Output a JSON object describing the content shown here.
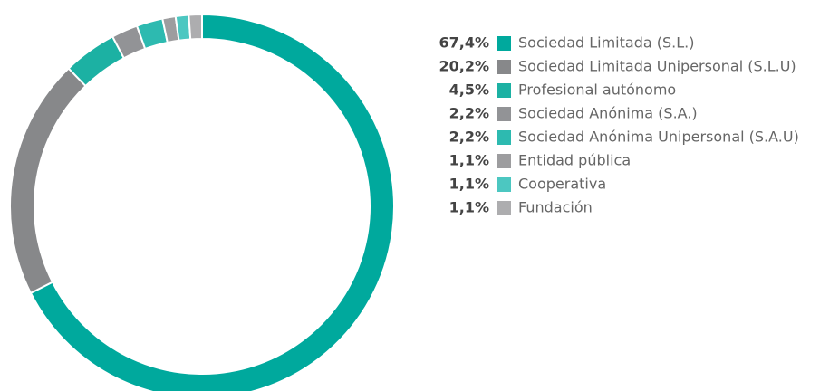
{
  "chart_data": {
    "type": "donut",
    "categories": [
      "Sociedad Limitada (S.L.)",
      "Sociedad Limitada Unipersonal (S.L.U)",
      "Profesional autónomo",
      "Sociedad Anónima (S.A.)",
      "Sociedad Anónima Unipersonal (S.A.U)",
      "Entidad pública",
      "Cooperativa",
      "Fundación"
    ],
    "values": [
      67.4,
      20.2,
      4.5,
      2.2,
      2.2,
      1.1,
      1.1,
      1.1
    ],
    "value_labels": [
      "67,4%",
      "20,2%",
      "4,5%",
      "2,2%",
      "2,2%",
      "1,1%",
      "1,1%",
      "1,1%"
    ],
    "colors": [
      "#00a99d",
      "#87888a",
      "#1cb1a3",
      "#929396",
      "#2dbab0",
      "#9d9d9f",
      "#4cc7c1",
      "#adadaf"
    ],
    "legend": "right"
  }
}
